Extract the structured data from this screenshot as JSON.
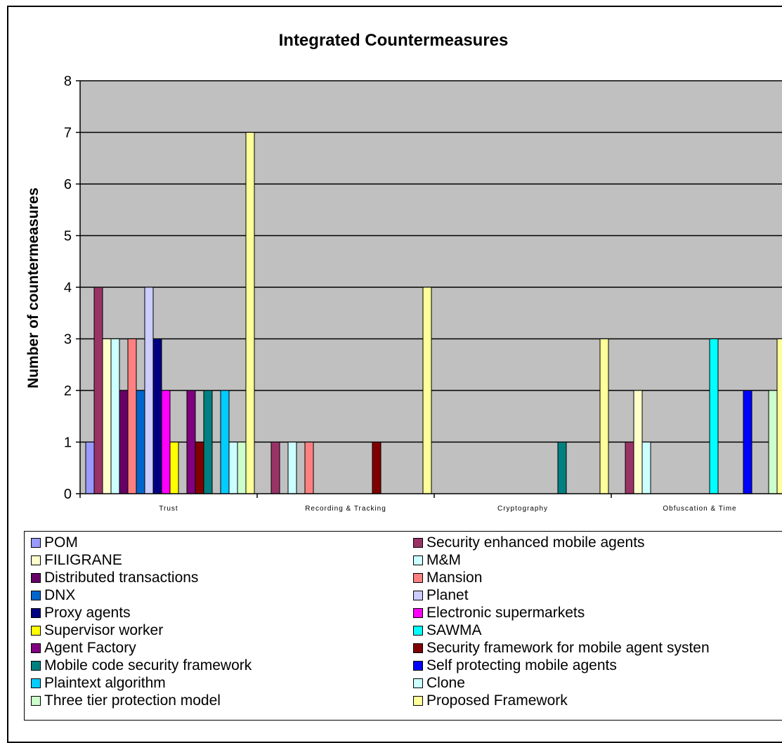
{
  "chart_data": {
    "type": "bar",
    "title": "Integrated Countermeasures",
    "xlabel": "",
    "ylabel": "Number of countermeasures",
    "ylim": [
      0,
      8
    ],
    "yticks": [
      0,
      1,
      2,
      3,
      4,
      5,
      6,
      7,
      8
    ],
    "grid": true,
    "legend_position": "bottom",
    "categories": [
      "Trust",
      "Recording & Tracking",
      "Cryptography",
      "Obfuscation & Time"
    ],
    "series": [
      {
        "name": "POM",
        "color": "#9999ff",
        "values": [
          1,
          0,
          0,
          0
        ]
      },
      {
        "name": "Security enhanced mobile agents",
        "color": "#993366",
        "values": [
          4,
          1,
          0,
          1
        ]
      },
      {
        "name": "FILIGRANE",
        "color": "#ffffcc",
        "values": [
          3,
          0,
          0,
          2
        ]
      },
      {
        "name": "M&M",
        "color": "#ccffff",
        "values": [
          3,
          1,
          0,
          1
        ]
      },
      {
        "name": "Distributed transactions",
        "color": "#660066",
        "values": [
          2,
          0,
          0,
          0
        ]
      },
      {
        "name": "Mansion",
        "color": "#ff8080",
        "values": [
          3,
          1,
          0,
          0
        ]
      },
      {
        "name": "DNX",
        "color": "#0066cc",
        "values": [
          2,
          0,
          0,
          0
        ]
      },
      {
        "name": "Planet",
        "color": "#ccccff",
        "values": [
          4,
          0,
          0,
          0
        ]
      },
      {
        "name": "Proxy agents",
        "color": "#000080",
        "values": [
          3,
          0,
          0,
          0
        ]
      },
      {
        "name": "Electronic supermarkets",
        "color": "#ff00ff",
        "values": [
          2,
          0,
          0,
          0
        ]
      },
      {
        "name": "Supervisor worker",
        "color": "#ffff00",
        "values": [
          1,
          0,
          0,
          0
        ]
      },
      {
        "name": "SAWMA",
        "color": "#00ffff",
        "values": [
          0,
          0,
          0,
          3
        ]
      },
      {
        "name": "Agent Factory",
        "color": "#800080",
        "values": [
          2,
          0,
          0,
          0
        ]
      },
      {
        "name": "Security framework for mobile agent systen",
        "color": "#800000",
        "values": [
          1,
          1,
          0,
          0
        ]
      },
      {
        "name": "Mobile code security framework",
        "color": "#008080",
        "values": [
          2,
          0,
          1,
          0
        ]
      },
      {
        "name": "Self protecting mobile agents",
        "color": "#0000ff",
        "values": [
          0,
          0,
          0,
          2
        ]
      },
      {
        "name": "Plaintext algorithm",
        "color": "#00ccff",
        "values": [
          2,
          0,
          0,
          0
        ]
      },
      {
        "name": "Clone",
        "color": "#ccffff",
        "values": [
          1,
          0,
          0,
          0
        ]
      },
      {
        "name": "Three tier protection model",
        "color": "#ccffcc",
        "values": [
          1,
          0,
          0,
          2
        ]
      },
      {
        "name": "Proposed Framework",
        "color": "#ffff99",
        "values": [
          7,
          4,
          3,
          3
        ]
      }
    ]
  },
  "style": {
    "plot_background": "#c0c0c0",
    "gridline_color": "#000000"
  }
}
